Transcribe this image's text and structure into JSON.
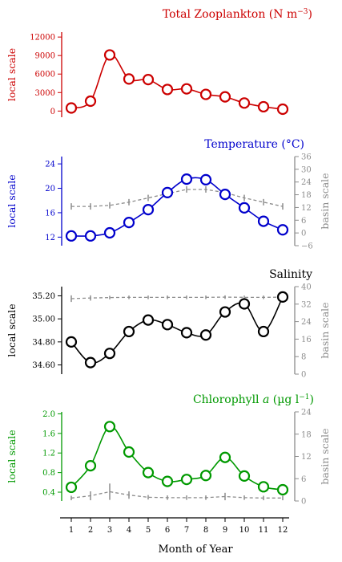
{
  "colors": {
    "zooplankton": "#cc0000",
    "temperature": "#0000cc",
    "salinity": "#000000",
    "chlorophyll": "#009900",
    "basin": "#8c8c8c"
  },
  "x_axis_label": "Month of Year",
  "chart_data": [
    {
      "type": "line",
      "title": "Total Zooplankton (N m",
      "title_sup": "−3",
      "title_tail": ")",
      "ylabel_left": "local scale",
      "ylabel_right": "",
      "x": [
        1,
        2,
        3,
        4,
        5,
        6,
        7,
        8,
        9,
        10,
        11,
        12
      ],
      "local_ylim": [
        -1000,
        12800
      ],
      "local_ticks": [
        0,
        3000,
        6000,
        9000,
        12000
      ],
      "local_tick_labels": [
        "0",
        "3000",
        "6000",
        "9000",
        "12000"
      ],
      "series": [
        {
          "values": [
            500,
            1600,
            9100,
            5200,
            5100,
            3500,
            3600,
            2700,
            2300,
            1300,
            700,
            300
          ]
        }
      ],
      "grid": false
    },
    {
      "type": "line",
      "title": "Temperature (°C)",
      "ylabel_left": "local scale",
      "ylabel_right": "basin scale",
      "x": [
        1,
        2,
        3,
        4,
        5,
        6,
        7,
        8,
        9,
        10,
        11,
        12
      ],
      "local_ylim": [
        10.6,
        25.2
      ],
      "local_ticks": [
        12,
        16,
        20,
        24
      ],
      "local_tick_labels": [
        "12",
        "16",
        "20",
        "24"
      ],
      "basin_ylim": [
        -6,
        36
      ],
      "basin_ticks": [
        -6,
        0,
        6,
        12,
        18,
        24,
        30,
        36
      ],
      "basin_tick_labels": [
        "−6",
        "0",
        "6",
        "12",
        "18",
        "24",
        "30",
        "36"
      ],
      "series": [
        {
          "values": [
            12.2,
            12.2,
            12.7,
            14.4,
            16.5,
            19.3,
            21.5,
            21.4,
            19.0,
            16.8,
            14.6,
            13.2
          ]
        }
      ],
      "basin_mean": [
        12.5,
        12.5,
        13,
        14.5,
        16.5,
        18.5,
        20.5,
        20.5,
        19,
        16.5,
        14.5,
        12.5
      ],
      "basin_err": [
        1.5,
        1.5,
        1.5,
        1.5,
        1.5,
        1.5,
        1.5,
        1.5,
        1.5,
        1.5,
        1.5,
        1.5
      ],
      "grid": false
    },
    {
      "type": "line",
      "title": "Salinity",
      "ylabel_left": "local scale",
      "ylabel_right": "basin scale",
      "x": [
        1,
        2,
        3,
        4,
        5,
        6,
        7,
        8,
        9,
        10,
        11,
        12
      ],
      "local_ylim": [
        34.52,
        35.28
      ],
      "local_ticks": [
        34.6,
        34.8,
        35.0,
        35.2
      ],
      "local_tick_labels": [
        "34.60",
        "34.80",
        "35.00",
        "35.20"
      ],
      "basin_ylim": [
        0,
        40
      ],
      "basin_ticks": [
        0,
        8,
        16,
        24,
        32,
        40
      ],
      "basin_tick_labels": [
        "0",
        "8",
        "16",
        "24",
        "32",
        "40"
      ],
      "series": [
        {
          "values": [
            34.8,
            34.62,
            34.7,
            34.89,
            34.99,
            34.95,
            34.88,
            34.86,
            35.06,
            35.13,
            34.89,
            35.19
          ]
        }
      ],
      "basin_mean": [
        34.5,
        34.8,
        35.0,
        35.1,
        35.1,
        35.1,
        35.1,
        35.1,
        35.2,
        35.1,
        35.1,
        35.2
      ],
      "basin_err": [
        1.5,
        1.2,
        0.8,
        0.8,
        0.8,
        0.8,
        0.8,
        0.8,
        0.8,
        0.8,
        0.8,
        0.8
      ],
      "grid": false
    },
    {
      "type": "line",
      "title": "Chlorophyll",
      "title_italic": "a",
      "title_tail": " (µg l",
      "title_sup": "−1",
      "title_end": ")",
      "ylabel_left": "local scale",
      "ylabel_right": "basin scale",
      "x": [
        1,
        2,
        3,
        4,
        5,
        6,
        7,
        8,
        9,
        10,
        11,
        12
      ],
      "local_ylim": [
        0.22,
        2.04
      ],
      "local_ticks": [
        0.4,
        0.8,
        1.2,
        1.6,
        2.0
      ],
      "local_tick_labels": [
        "0.4",
        "0.8",
        "1.2",
        "1.6",
        "2.0"
      ],
      "basin_ylim": [
        0,
        24
      ],
      "basin_ticks": [
        0,
        6,
        12,
        18,
        24
      ],
      "basin_tick_labels": [
        "0",
        "6",
        "12",
        "18",
        "24"
      ],
      "series": [
        {
          "values": [
            0.5,
            0.94,
            1.74,
            1.22,
            0.8,
            0.62,
            0.66,
            0.74,
            1.11,
            0.73,
            0.51,
            0.45
          ]
        }
      ],
      "basin_mean": [
        0.8,
        1.4,
        2.5,
        1.6,
        1.0,
        0.9,
        0.9,
        0.9,
        1.2,
        0.9,
        0.8,
        0.8
      ],
      "basin_err": [
        0.6,
        1.2,
        2.2,
        1.0,
        0.6,
        0.6,
        0.6,
        0.6,
        1.0,
        0.6,
        0.6,
        0.6
      ],
      "grid": false
    }
  ]
}
